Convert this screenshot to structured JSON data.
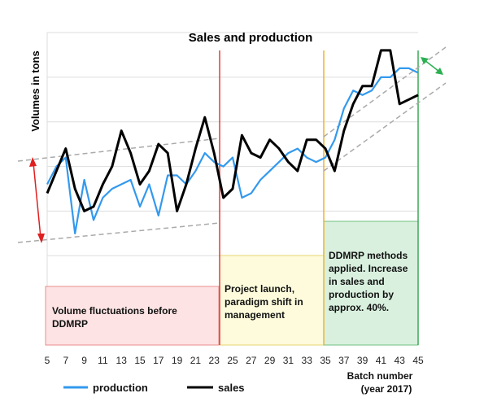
{
  "chart_data": {
    "type": "line",
    "title": "Sales and production",
    "ylabel": "Volumes in tons",
    "xlabel": [
      "Batch number",
      "(year 2017)"
    ],
    "x_ticks": [
      5,
      7,
      9,
      11,
      13,
      15,
      17,
      19,
      21,
      23,
      25,
      27,
      29,
      31,
      33,
      35,
      37,
      39,
      41,
      43,
      45
    ],
    "xlim": [
      5,
      45
    ],
    "ylim": [
      0,
      7
    ],
    "grid": "horizontal",
    "legend_position": "bottom",
    "series": [
      {
        "name": "production",
        "color": "#3399ee",
        "x": [
          5,
          6,
          7,
          8,
          9,
          10,
          11,
          12,
          13,
          14,
          15,
          16,
          17,
          18,
          19,
          20,
          21,
          22,
          23,
          24,
          25,
          26,
          27,
          28,
          29,
          30,
          31,
          32,
          33,
          34,
          35,
          36,
          37,
          38,
          39,
          40,
          41,
          42,
          43,
          44,
          45
        ],
        "y": [
          3.6,
          4.0,
          4.2,
          2.5,
          3.7,
          2.8,
          3.3,
          3.5,
          3.6,
          3.7,
          3.1,
          3.6,
          2.9,
          3.8,
          3.8,
          3.6,
          3.9,
          4.3,
          4.1,
          4.0,
          4.2,
          3.3,
          3.4,
          3.7,
          3.9,
          4.1,
          4.3,
          4.4,
          4.2,
          4.1,
          4.2,
          4.6,
          5.3,
          5.7,
          5.6,
          5.7,
          6.0,
          6.0,
          6.2,
          6.2,
          6.1
        ]
      },
      {
        "name": "sales",
        "color": "#000000",
        "x": [
          5,
          6,
          7,
          8,
          9,
          10,
          11,
          12,
          13,
          14,
          15,
          16,
          17,
          18,
          19,
          20,
          21,
          22,
          23,
          24,
          25,
          26,
          27,
          28,
          29,
          30,
          31,
          32,
          33,
          34,
          35,
          36,
          37,
          38,
          39,
          40,
          41,
          42,
          43,
          44,
          45
        ],
        "y": [
          3.4,
          3.9,
          4.4,
          3.5,
          3.0,
          3.1,
          3.6,
          4.0,
          4.8,
          4.3,
          3.6,
          3.9,
          4.5,
          4.3,
          3.0,
          3.6,
          4.4,
          5.1,
          4.3,
          3.3,
          3.5,
          4.7,
          4.3,
          4.2,
          4.6,
          4.4,
          4.1,
          3.9,
          4.6,
          4.6,
          4.4,
          3.9,
          4.8,
          5.4,
          5.8,
          5.8,
          6.6,
          6.6,
          5.4,
          5.5,
          5.6
        ]
      }
    ],
    "annotations": {
      "phase1": [
        "Volume fluctuations before",
        "DDMRP"
      ],
      "phase2": [
        "Project launch,",
        "paradigm shift in",
        "management"
      ],
      "phase3": [
        "DDMRP methods",
        "applied. Increase",
        "in sales and",
        "production by",
        "approx. 40%."
      ]
    }
  }
}
